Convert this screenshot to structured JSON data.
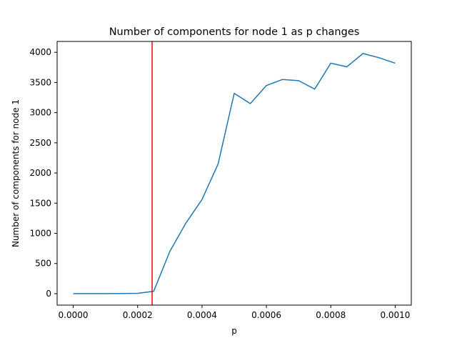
{
  "chart_data": {
    "type": "line",
    "title": "Number of components for node 1 as p changes",
    "xlabel": "p",
    "ylabel": "Number of components for node 1",
    "xlim": [
      -5e-05,
      0.00105
    ],
    "ylim": [
      -190,
      4180
    ],
    "xticks": [
      0,
      0.0002,
      0.0004,
      0.0006,
      0.0008,
      0.001
    ],
    "xtick_labels": [
      "0.0000",
      "0.0002",
      "0.0004",
      "0.0006",
      "0.0008",
      "0.0010"
    ],
    "yticks": [
      0,
      500,
      1000,
      1500,
      2000,
      2500,
      3000,
      3500,
      4000
    ],
    "ytick_labels": [
      "0",
      "500",
      "1000",
      "1500",
      "2000",
      "2500",
      "3000",
      "3500",
      "4000"
    ],
    "grid": false,
    "series": [
      {
        "color": "#1f77b4",
        "x": [
          0,
          5e-05,
          0.0001,
          0.00015,
          0.0002,
          0.00025,
          0.0003,
          0.00035,
          0.0004,
          0.00045,
          0.0005,
          0.00055,
          0.0006,
          0.00065,
          0.0007,
          0.00075,
          0.0008,
          0.00085,
          0.0009,
          0.00095,
          0.001
        ],
        "y": [
          1,
          1,
          1,
          3,
          6,
          40,
          700,
          1170,
          1560,
          2150,
          3320,
          3150,
          3450,
          3550,
          3530,
          3390,
          3820,
          3760,
          3980,
          3910,
          3820
        ]
      }
    ],
    "vlines": [
      {
        "x": 0.000245,
        "color": "#ff0000"
      }
    ]
  }
}
